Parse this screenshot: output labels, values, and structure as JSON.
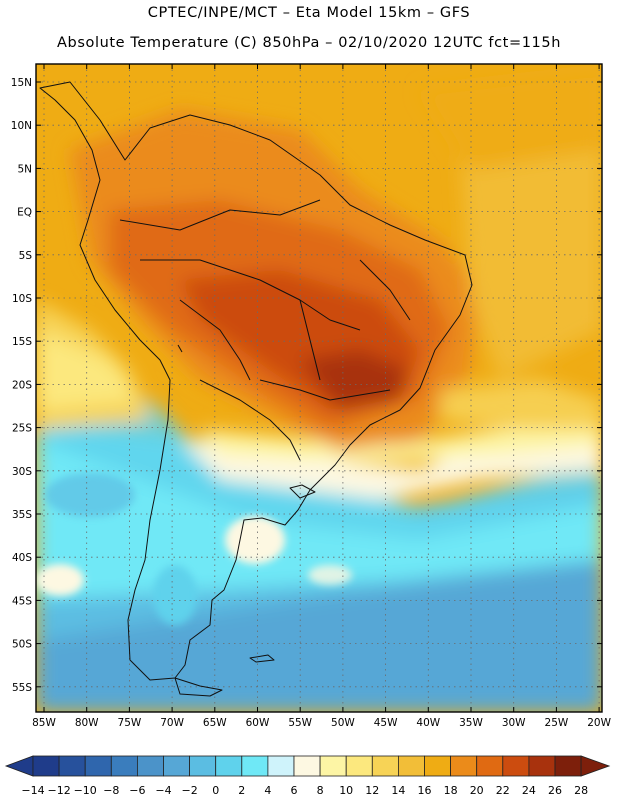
{
  "header": {
    "line1": "CPTEC/INPE/MCT –  Eta Model 15km – GFS",
    "line2": "Absolute Temperature (C) 850hPa – 02/10/2020 12UTC fct=115h"
  },
  "map": {
    "lat_labels": [
      "15N",
      "10N",
      "5N",
      "EQ",
      "5S",
      "10S",
      "15S",
      "20S",
      "25S",
      "30S",
      "35S",
      "40S",
      "45S",
      "50S",
      "55S"
    ],
    "lon_labels": [
      "85W",
      "80W",
      "75W",
      "70W",
      "65W",
      "60W",
      "55W",
      "50W",
      "45W",
      "40W",
      "35W",
      "30W",
      "25W",
      "20W"
    ]
  },
  "colorbar": {
    "labels": [
      "-14",
      "-12",
      "-10",
      "-8",
      "-6",
      "-4",
      "-2",
      "0",
      "2",
      "4",
      "6",
      "8",
      "10",
      "12",
      "14",
      "16",
      "18",
      "20",
      "22",
      "24",
      "26",
      "28"
    ],
    "colors": [
      "#1f3c8a",
      "#27519c",
      "#2f66ad",
      "#3a7dbd",
      "#4b93c9",
      "#56a7d6",
      "#5bbde2",
      "#5fd2ec",
      "#6fe8f6",
      "#cff3fb",
      "#fdf8e2",
      "#fdf5a5",
      "#fce87e",
      "#f7d356",
      "#f2be38",
      "#efac14",
      "#eb8b1a",
      "#e06a12",
      "#cc4c0f",
      "#a8320d",
      "#7d1f0b"
    ],
    "under_color": "#1f3c8a",
    "over_color": "#7d1f0b"
  }
}
